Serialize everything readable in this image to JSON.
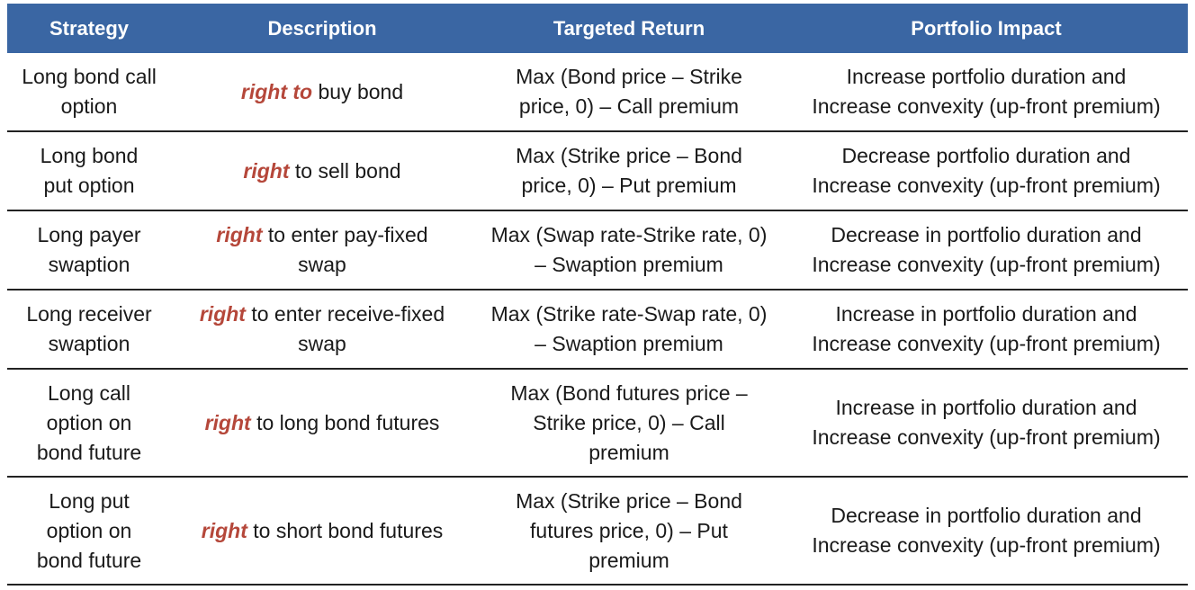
{
  "table": {
    "headers": [
      "Strategy",
      "Description",
      "Targeted Return",
      "Portfolio Impact"
    ],
    "rows": [
      {
        "strategy": [
          "Long bond call",
          "option"
        ],
        "desc_kw": "right to",
        "desc_rest": " buy bond",
        "desc_rest2": "",
        "return": [
          "Max (Bond price – Strike",
          "price, 0) – Call premium"
        ],
        "impact": [
          "Increase portfolio duration and",
          "Increase convexity (up-front premium)"
        ]
      },
      {
        "strategy": [
          "Long bond",
          "put option"
        ],
        "desc_kw": "right",
        "desc_rest": " to sell bond",
        "desc_rest2": "",
        "return": [
          "Max (Strike price – Bond",
          "price, 0) – Put premium"
        ],
        "impact": [
          "Decrease portfolio duration and",
          "Increase convexity (up-front premium)"
        ]
      },
      {
        "strategy": [
          "Long payer",
          "swaption"
        ],
        "desc_kw": "right",
        "desc_rest": " to enter pay-fixed",
        "desc_rest2": "swap",
        "return": [
          "Max (Swap rate-Strike rate, 0)",
          "– Swaption premium"
        ],
        "impact": [
          "Decrease in portfolio duration and",
          "Increase convexity (up-front premium)"
        ]
      },
      {
        "strategy": [
          "Long receiver",
          "swaption"
        ],
        "desc_kw": "right",
        "desc_rest": " to enter receive-fixed",
        "desc_rest2": "swap",
        "return": [
          "Max (Strike rate-Swap rate, 0)",
          "– Swaption premium"
        ],
        "impact": [
          "Increase in portfolio duration and",
          "Increase convexity (up-front premium)"
        ]
      },
      {
        "strategy": [
          "Long call",
          "option on",
          "bond future"
        ],
        "desc_kw": "right",
        "desc_rest": " to long bond futures",
        "desc_rest2": "",
        "return": [
          "Max (Bond futures price –",
          "Strike price, 0) – Call",
          "premium"
        ],
        "impact": [
          "Increase in portfolio duration and",
          "Increase convexity (up-front premium)"
        ]
      },
      {
        "strategy": [
          "Long put",
          "option on",
          "bond future"
        ],
        "desc_kw": "right",
        "desc_rest": " to short bond futures",
        "desc_rest2": "",
        "return": [
          "Max (Strike price – Bond",
          "futures price, 0) – Put",
          "premium"
        ],
        "impact": [
          "Decrease in portfolio duration and",
          "Increase convexity (up-front premium)"
        ]
      }
    ]
  },
  "colors": {
    "header_bg": "#3a66a3",
    "keyword": "#b5473a"
  }
}
